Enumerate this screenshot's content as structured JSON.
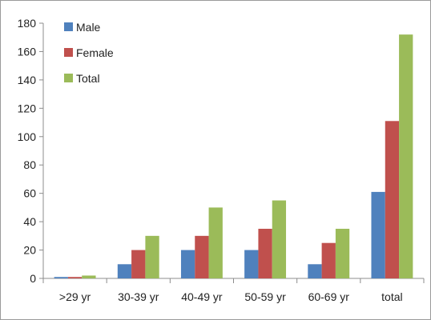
{
  "chart_data": {
    "type": "bar",
    "title": "",
    "xlabel": "",
    "ylabel": "",
    "categories": [
      ">29 yr",
      "30-39 yr",
      "40-49 yr",
      "50-59 yr",
      "60-69 yr",
      "total"
    ],
    "series": [
      {
        "name": "Male",
        "color": "#4f81bd",
        "values": [
          1,
          10,
          20,
          20,
          10,
          61
        ]
      },
      {
        "name": "Female",
        "color": "#c0504d",
        "values": [
          1,
          20,
          30,
          35,
          25,
          111
        ]
      },
      {
        "name": "Total",
        "color": "#9bbb59",
        "values": [
          2,
          30,
          50,
          55,
          35,
          172
        ]
      }
    ],
    "ylim": [
      0,
      180
    ],
    "yticks": [
      0,
      20,
      40,
      60,
      80,
      100,
      120,
      140,
      160,
      180
    ],
    "grid": false,
    "legend_position": "top-left"
  }
}
